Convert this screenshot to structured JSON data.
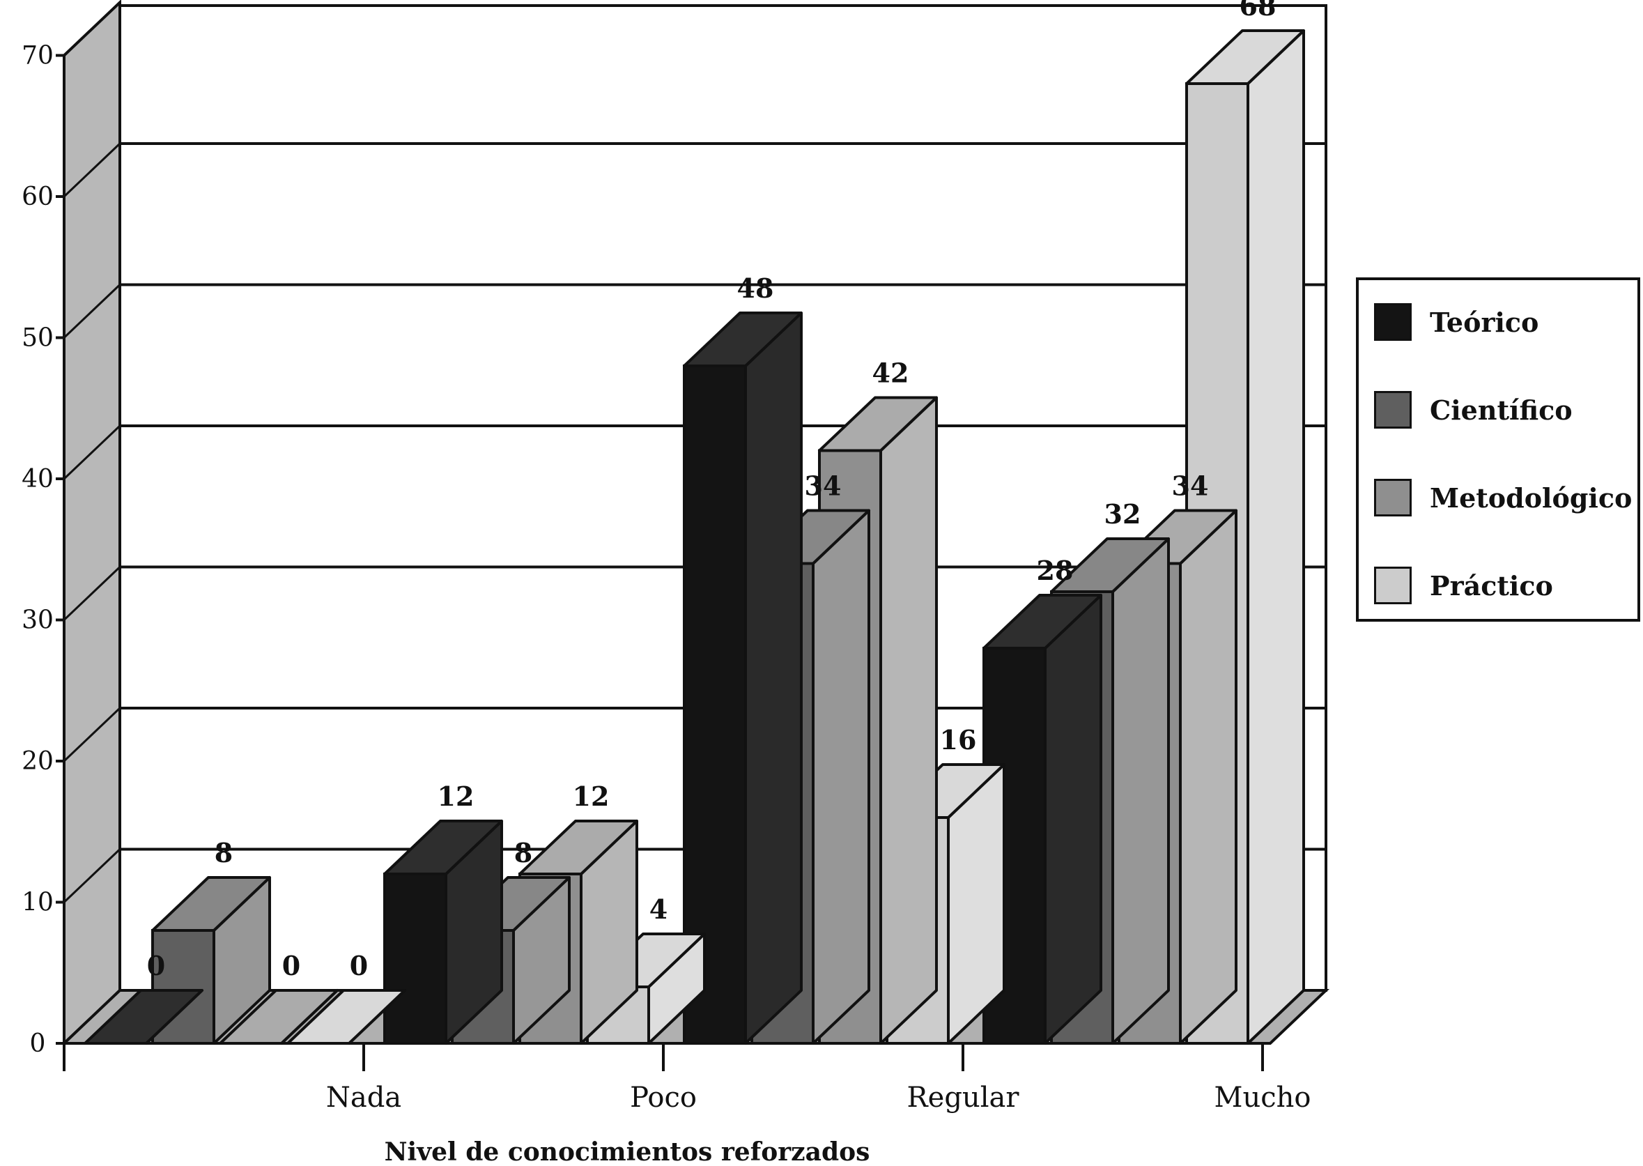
{
  "chart_data": {
    "type": "bar",
    "style": "3d-clustered",
    "xlabel": "Nivel de conocimientos reforzados",
    "ylabel": "",
    "ylim": [
      0,
      70
    ],
    "yticks": [
      0,
      10,
      20,
      30,
      40,
      50,
      60,
      70
    ],
    "grid": true,
    "legend_position": "right",
    "categories": [
      "Nada",
      "Poco",
      "Regular",
      "Mucho"
    ],
    "series": [
      {
        "name": "Teórico",
        "color": "#141414",
        "values": [
          0,
          12,
          48,
          28
        ]
      },
      {
        "name": "Científico",
        "color": "#5f5f5f",
        "values": [
          8,
          8,
          34,
          32
        ]
      },
      {
        "name": "Metodológico",
        "color": "#8f8f8f",
        "values": [
          0,
          12,
          42,
          34
        ]
      },
      {
        "name": "Práctico",
        "color": "#cccccc",
        "values": [
          0,
          4,
          16,
          68
        ]
      }
    ]
  }
}
